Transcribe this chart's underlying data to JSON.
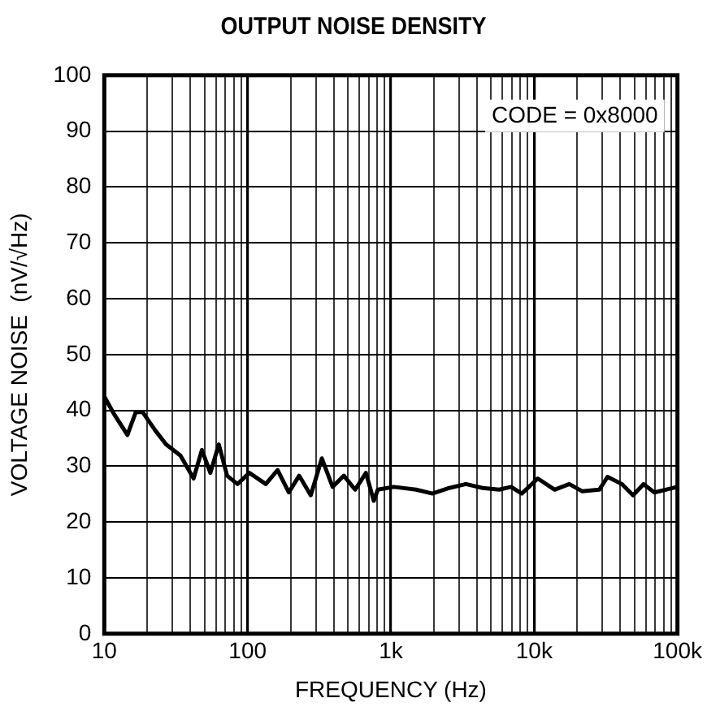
{
  "chart_data": {
    "type": "line",
    "title": "OUTPUT NOISE DENSITY",
    "xlabel": "FREQUENCY (Hz)",
    "ylabel": "VOLTAGE NOISE  (nV/√Hz)",
    "annotations": [
      "CODE = 0x8000"
    ],
    "log": "x",
    "grid": true,
    "legend": false,
    "marker": "none",
    "line_style": "solid",
    "xlim": [
      10,
      100000
    ],
    "ylim": [
      0,
      100
    ],
    "xticks": [
      {
        "value": 10,
        "label": "10"
      },
      {
        "value": 20,
        "label": null
      },
      {
        "value": 30,
        "label": null
      },
      {
        "value": 40,
        "label": null
      },
      {
        "value": 50,
        "label": null
      },
      {
        "value": 60,
        "label": null
      },
      {
        "value": 70,
        "label": null
      },
      {
        "value": 80,
        "label": null
      },
      {
        "value": 90,
        "label": null
      },
      {
        "value": 100,
        "label": "100"
      },
      {
        "value": 200,
        "label": null
      },
      {
        "value": 300,
        "label": null
      },
      {
        "value": 400,
        "label": null
      },
      {
        "value": 500,
        "label": null
      },
      {
        "value": 600,
        "label": null
      },
      {
        "value": 700,
        "label": null
      },
      {
        "value": 800,
        "label": null
      },
      {
        "value": 900,
        "label": null
      },
      {
        "value": 1000,
        "label": "1k"
      },
      {
        "value": 2000,
        "label": null
      },
      {
        "value": 3000,
        "label": null
      },
      {
        "value": 4000,
        "label": null
      },
      {
        "value": 5000,
        "label": null
      },
      {
        "value": 6000,
        "label": null
      },
      {
        "value": 7000,
        "label": null
      },
      {
        "value": 8000,
        "label": null
      },
      {
        "value": 9000,
        "label": null
      },
      {
        "value": 10000,
        "label": "10k"
      },
      {
        "value": 20000,
        "label": null
      },
      {
        "value": 30000,
        "label": null
      },
      {
        "value": 40000,
        "label": null
      },
      {
        "value": 50000,
        "label": null
      },
      {
        "value": 60000,
        "label": null
      },
      {
        "value": 70000,
        "label": null
      },
      {
        "value": 80000,
        "label": null
      },
      {
        "value": 90000,
        "label": null
      },
      {
        "value": 100000,
        "label": "100k"
      }
    ],
    "yticks": [
      0,
      10,
      20,
      30,
      40,
      50,
      60,
      70,
      80,
      90,
      100
    ],
    "series": [
      {
        "color": "#000000",
        "x": [
          10,
          11.6,
          14.5,
          16.6,
          18.5,
          22.7,
          27,
          34,
          42,
          48,
          55,
          63,
          72,
          85,
          103,
          134,
          162,
          194,
          229,
          276,
          330,
          392,
          470,
          563,
          670,
          760,
          810,
          1050,
          1500,
          1950,
          2560,
          3340,
          4370,
          5700,
          6900,
          8200,
          10600,
          13900,
          17600,
          21700,
          28500,
          32500,
          41000,
          49000,
          58000,
          69000,
          100000
        ],
        "values": [
          42.5,
          39.5,
          35.6,
          39.7,
          39.7,
          36.4,
          33.9,
          31.9,
          27.8,
          32.9,
          28.8,
          33.9,
          28.3,
          26.8,
          28.8,
          26.8,
          29.3,
          25.3,
          28.3,
          24.8,
          31.4,
          26.3,
          28.3,
          25.8,
          28.8,
          23.8,
          25.8,
          26.3,
          25.8,
          25.1,
          26.1,
          26.8,
          26.1,
          25.8,
          26.3,
          25.1,
          27.8,
          25.8,
          26.8,
          25.5,
          25.8,
          28.1,
          26.8,
          24.8,
          26.8,
          25.3,
          26.3
        ]
      }
    ]
  }
}
